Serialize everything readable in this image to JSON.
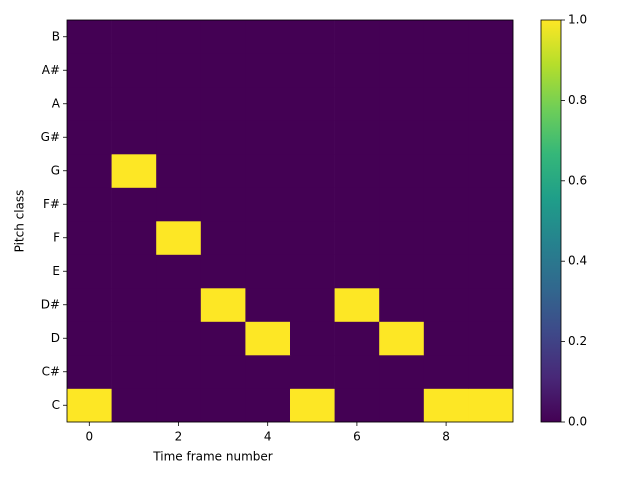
{
  "chart_data": {
    "type": "heatmap",
    "xlabel": "Time frame number",
    "ylabel": "Pitch class",
    "xlim": [
      -0.5,
      9.5
    ],
    "xticks": [
      0,
      2,
      4,
      6,
      8
    ],
    "categories": [
      "C",
      "C#",
      "D",
      "D#",
      "E",
      "F",
      "F#",
      "G",
      "G#",
      "A",
      "A#",
      "B"
    ],
    "values": [
      [
        1,
        0,
        0,
        0,
        0,
        1,
        0,
        0,
        1,
        1
      ],
      [
        0,
        0,
        0,
        0,
        0,
        0,
        0,
        0,
        0,
        0
      ],
      [
        0,
        0,
        0,
        0,
        1,
        0,
        0,
        1,
        0,
        0
      ],
      [
        0,
        0,
        0,
        1,
        0,
        0,
        1,
        0,
        0,
        0
      ],
      [
        0,
        0,
        0,
        0,
        0,
        0,
        0,
        0,
        0,
        0
      ],
      [
        0,
        0,
        1,
        0,
        0,
        0,
        0,
        0,
        0,
        0
      ],
      [
        0,
        0,
        0,
        0,
        0,
        0,
        0,
        0,
        0,
        0
      ],
      [
        0,
        1,
        0,
        0,
        0,
        0,
        0,
        0,
        0,
        0
      ],
      [
        0,
        0,
        0,
        0,
        0,
        0,
        0,
        0,
        0,
        0
      ],
      [
        0,
        0,
        0,
        0,
        0,
        0,
        0,
        0,
        0,
        0
      ],
      [
        0,
        0,
        0,
        0,
        0,
        0,
        0,
        0,
        0,
        0
      ],
      [
        0,
        0,
        0,
        0,
        0,
        0,
        0,
        0,
        0,
        0
      ]
    ],
    "colormap": [
      "#440154",
      "#482878",
      "#3e4989",
      "#31688e",
      "#26828e",
      "#1f9e89",
      "#35b779",
      "#6ece58",
      "#b5de2b",
      "#fde725"
    ],
    "colorbar_lim": [
      0,
      1
    ],
    "colorbar_ticks": [
      {
        "value": 0,
        "label": "0.0"
      },
      {
        "value": 0.2,
        "label": "0.2"
      },
      {
        "value": 0.4,
        "label": "0.4"
      },
      {
        "value": 0.6,
        "label": "0.6"
      },
      {
        "value": 0.8,
        "label": "0.8"
      },
      {
        "value": 1,
        "label": "1.0"
      }
    ]
  }
}
